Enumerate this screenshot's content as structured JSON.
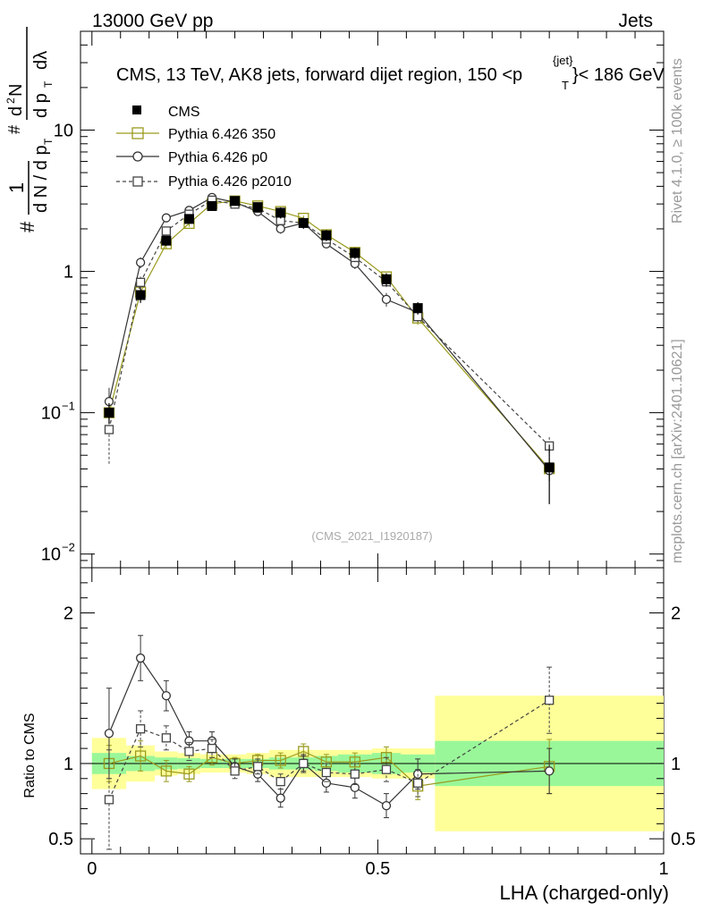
{
  "header": {
    "energy_label": "13000 GeV pp",
    "category_label": "Jets"
  },
  "side_labels": {
    "rivet": "Rivet 4.1.0, ≥ 100k events",
    "mcplots": "mcplots.cern.ch [arXiv:2401.10621]"
  },
  "chart_data": {
    "type": "line",
    "title_parts": [
      "CMS, 13 TeV, AK8 jets, forward dijet region, 150 <p",
      "{jet}",
      "T",
      "}< 186 GeV"
    ],
    "analysis_id": "(CMS_2021_I1920187)",
    "xlabel": "LHA (charged-only)",
    "ylabel_main_parts": [
      "1",
      "d N / d p",
      "T",
      "#",
      "d",
      "2",
      "N",
      "d p",
      "T",
      "dλ",
      "#"
    ],
    "ylabel_ratio": "Ratio to CMS",
    "xlim": [
      -0.02,
      1.0
    ],
    "ylim_main": [
      0.008,
      50
    ],
    "yscale_main": "log",
    "ylim_ratio": [
      0.4,
      2.3
    ],
    "x_ticks": [
      "0",
      "0.5",
      "1"
    ],
    "y_ticks_main": [
      {
        "base": "10",
        "exp": "−2"
      },
      {
        "base": "10",
        "exp": "−1"
      },
      {
        "base": "1",
        "exp": ""
      },
      {
        "base": "10",
        "exp": ""
      }
    ],
    "y_ticks_ratio": [
      "0.5",
      "1",
      "2"
    ],
    "bin_edges": [
      0.0,
      0.06,
      0.11,
      0.15,
      0.19,
      0.23,
      0.27,
      0.31,
      0.35,
      0.39,
      0.43,
      0.49,
      0.54,
      0.6,
      1.0
    ],
    "x": [
      0.03,
      0.085,
      0.13,
      0.17,
      0.21,
      0.25,
      0.29,
      0.33,
      0.37,
      0.41,
      0.46,
      0.515,
      0.57,
      0.8
    ],
    "data": {
      "name": "CMS",
      "values": [
        0.1,
        0.68,
        1.65,
        2.35,
        2.9,
        3.15,
        2.85,
        2.6,
        2.2,
        1.8,
        1.35,
        0.88,
        0.55,
        0.041
      ],
      "rel_unc_stat": [
        0.07,
        0.05,
        0.04,
        0.035,
        0.03,
        0.03,
        0.03,
        0.04,
        0.04,
        0.05,
        0.06,
        0.07,
        0.06,
        0.15
      ],
      "rel_unc_total": [
        0.17,
        0.12,
        0.08,
        0.07,
        0.06,
        0.06,
        0.07,
        0.09,
        0.09,
        0.09,
        0.09,
        0.1,
        0.1,
        0.45
      ]
    },
    "series": [
      {
        "name": "Pythia 6.426 350",
        "color": "#9a9a1e",
        "marker": "square",
        "dash": "",
        "ratio": [
          1.0,
          1.05,
          0.95,
          0.93,
          1.04,
          1.0,
          1.02,
          1.02,
          1.08,
          1.01,
          1.01,
          1.04,
          0.85,
          0.98
        ],
        "ratio_err": [
          0.12,
          0.1,
          0.07,
          0.05,
          0.05,
          0.04,
          0.04,
          0.05,
          0.05,
          0.05,
          0.06,
          0.07,
          0.09,
          0.18
        ]
      },
      {
        "name": "Pythia 6.426 p0",
        "color": "#333333",
        "marker": "circle",
        "dash": "",
        "ratio": [
          1.2,
          1.7,
          1.45,
          1.15,
          1.15,
          0.98,
          0.93,
          0.77,
          1.0,
          0.87,
          0.84,
          0.72,
          0.93,
          0.95
        ],
        "ratio_err": [
          0.3,
          0.15,
          0.1,
          0.06,
          0.06,
          0.05,
          0.05,
          0.06,
          0.06,
          0.06,
          0.07,
          0.08,
          0.1,
          0.15
        ]
      },
      {
        "name": "Pythia 6.426 p2010",
        "color": "#444444",
        "marker": "square",
        "dash": "4,3",
        "ratio": [
          0.76,
          1.23,
          1.17,
          1.08,
          1.1,
          0.95,
          0.98,
          0.88,
          1.0,
          0.94,
          0.93,
          0.96,
          0.87,
          1.42
        ],
        "ratio_err": [
          0.33,
          0.12,
          0.08,
          0.06,
          0.06,
          0.05,
          0.05,
          0.05,
          0.05,
          0.06,
          0.07,
          0.08,
          0.09,
          0.22
        ]
      }
    ],
    "band_colors": {
      "stat": "#99f799",
      "total": "#ffff99"
    }
  }
}
